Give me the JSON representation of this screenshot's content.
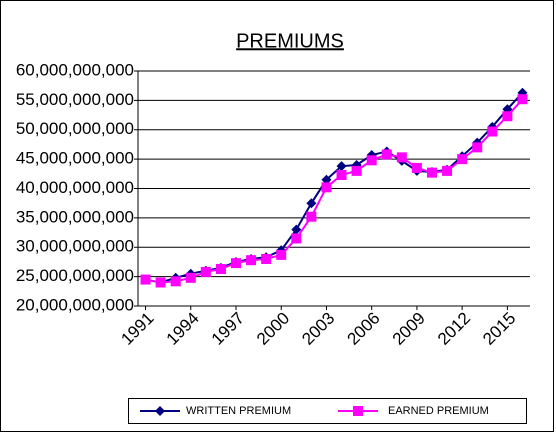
{
  "chart_data": {
    "type": "line",
    "title": "PREMIUMS",
    "x": [
      1991,
      1992,
      1993,
      1994,
      1995,
      1996,
      1997,
      1998,
      1999,
      2000,
      2001,
      2002,
      2003,
      2004,
      2005,
      2006,
      2007,
      2008,
      2009,
      2010,
      2011,
      2012,
      2013,
      2014,
      2015,
      2016
    ],
    "xlim": [
      1990.5,
      2016.5
    ],
    "xticks": [
      1991,
      1994,
      1997,
      2000,
      2003,
      2006,
      2009,
      2012,
      2015
    ],
    "ylim": [
      20000000000,
      60000000000
    ],
    "yticks": [
      {
        "value": 20000000000,
        "label": "20,000,000,000"
      },
      {
        "value": 25000000000,
        "label": "25,000,000,000"
      },
      {
        "value": 30000000000,
        "label": "30,000,000,000"
      },
      {
        "value": 35000000000,
        "label": "35,000,000,000"
      },
      {
        "value": 40000000000,
        "label": "40,000,000,000"
      },
      {
        "value": 45000000000,
        "label": "45,000,000,000"
      },
      {
        "value": 50000000000,
        "label": "50,000,000,000"
      },
      {
        "value": 55000000000,
        "label": "55,000,000,000"
      },
      {
        "value": 60000000000,
        "label": "60,000,000,000"
      }
    ],
    "grid": true,
    "legend": "bottom",
    "series": [
      {
        "name": "WRITTEN PREMIUM",
        "color": "#000080",
        "marker": "diamond",
        "values": [
          24500000000,
          24000000000,
          24800000000,
          25500000000,
          26000000000,
          26500000000,
          27500000000,
          28000000000,
          28300000000,
          29500000000,
          33000000000,
          37500000000,
          41500000000,
          43800000000,
          44000000000,
          45700000000,
          46300000000,
          44700000000,
          43000000000,
          42800000000,
          43200000000,
          45500000000,
          47800000000,
          50500000000,
          53500000000,
          56300000000
        ]
      },
      {
        "name": "EARNED PREMIUM",
        "color": "#ff00ff",
        "marker": "square",
        "values": [
          24500000000,
          24000000000,
          24200000000,
          24800000000,
          25800000000,
          26300000000,
          27300000000,
          27800000000,
          28000000000,
          28700000000,
          31500000000,
          35200000000,
          40200000000,
          42300000000,
          43000000000,
          44800000000,
          45800000000,
          45300000000,
          43500000000,
          42700000000,
          43000000000,
          45000000000,
          47000000000,
          49700000000,
          52300000000,
          55200000000
        ]
      }
    ]
  }
}
